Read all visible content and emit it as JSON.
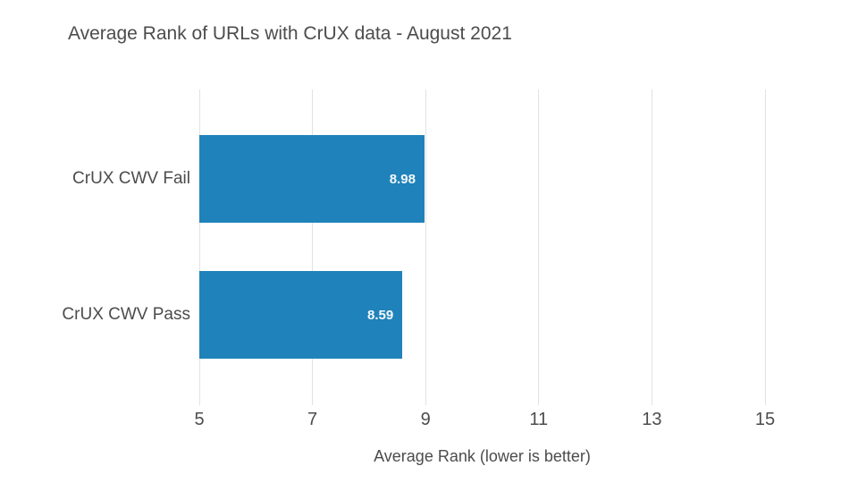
{
  "chart_data": {
    "type": "bar",
    "orientation": "horizontal",
    "title": "Average Rank of URLs with CrUX data - August 2021",
    "categories": [
      "CrUX CWV Fail",
      "CrUX CWV Pass"
    ],
    "values": [
      8.98,
      8.59
    ],
    "value_labels": [
      "8.98",
      "8.59"
    ],
    "xlabel": "Average Rank (lower is better)",
    "ylabel": "",
    "xlim": [
      5,
      15
    ],
    "xticks": [
      5,
      7,
      9,
      11,
      13,
      15
    ],
    "grid": "vertical-gridlines-only",
    "legend": "none",
    "bar_color": "#2082ba",
    "value_label_color": "#f3f8fc",
    "text_color": "#4c4c4c",
    "gridline_color": "#e2e2e2",
    "background_color": "#ffffff"
  }
}
